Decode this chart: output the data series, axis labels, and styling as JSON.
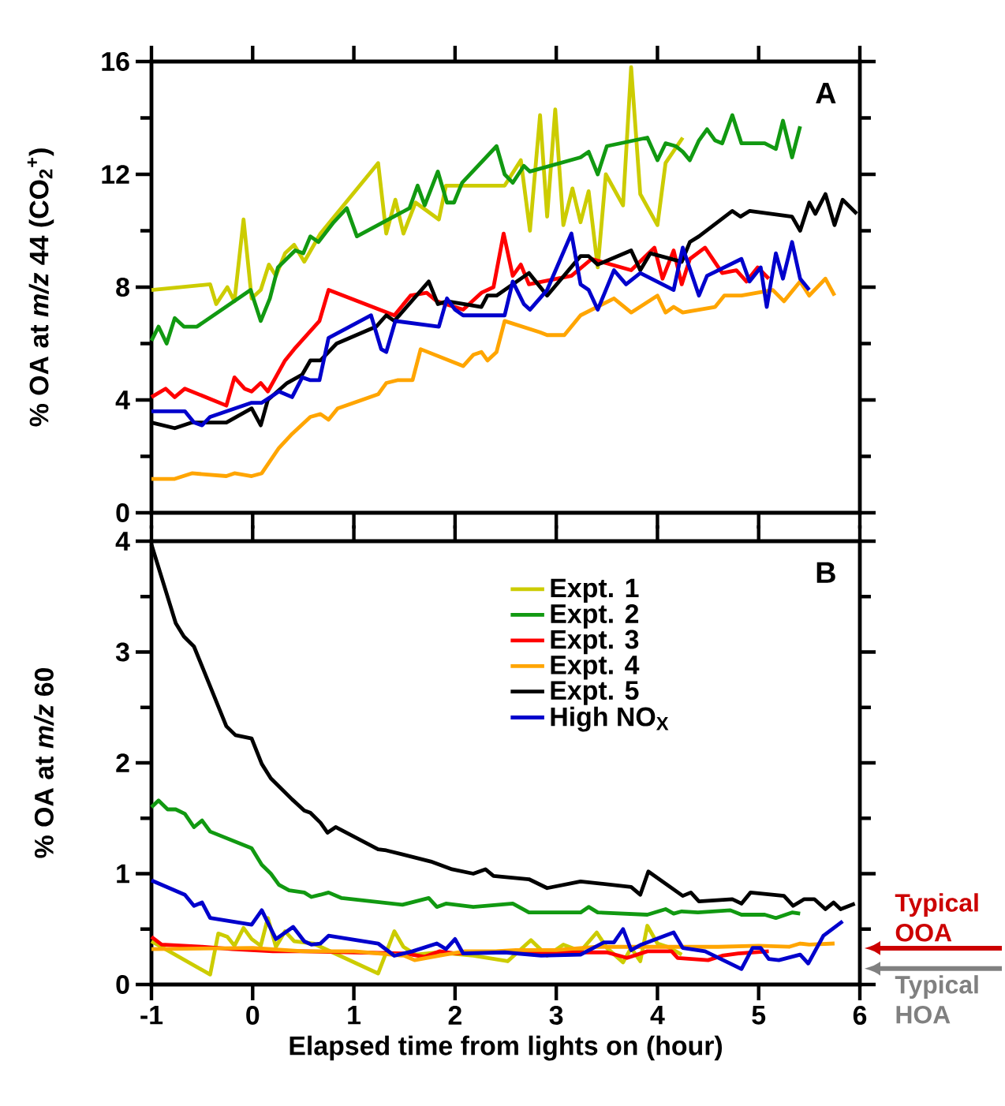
{
  "chart_data": [
    {
      "type": "line",
      "title": "A",
      "ylabel": "% OA at *m/z* 44 (CO$_{2}$$^{+}$)",
      "xlim": [
        -1,
        6
      ],
      "xticks": [
        -1,
        0,
        1,
        2,
        3,
        4,
        5,
        6
      ],
      "ylim": [
        0,
        16
      ],
      "yticks": [
        0,
        4,
        8,
        12,
        16
      ],
      "tick_labels": "y",
      "series": [
        {
          "color": "#cccc00",
          "x": [
            -1,
            -0.42,
            -0.36,
            -0.25,
            -0.18,
            -0.09,
            -0.01,
            0.08,
            0.16,
            0.23,
            0.32,
            0.41,
            0.51,
            0.67,
            1.24,
            1.32,
            1.41,
            1.49,
            1.61,
            1.84,
            1.91,
            2.49,
            2.65,
            2.74,
            2.84,
            2.91,
            2.99,
            3.07,
            3.16,
            3.24,
            3.32,
            3.41,
            3.49,
            3.66,
            3.74,
            3.83,
            4.0,
            4.08,
            4.25
          ],
          "values": [
            7.9,
            8.1,
            7.4,
            8.0,
            7.5,
            10.4,
            7.6,
            7.9,
            8.8,
            8.4,
            9.2,
            9.5,
            8.9,
            9.9,
            12.4,
            9.9,
            11.1,
            9.9,
            11.0,
            10.4,
            11.6,
            11.6,
            12.5,
            10.0,
            14.1,
            10.5,
            14.3,
            10.2,
            11.5,
            10.3,
            11.4,
            8.7,
            12.0,
            10.9,
            15.8,
            11.3,
            10.2,
            12.4,
            13.3
          ]
        },
        {
          "color": "#119911",
          "x": [
            -1,
            -0.93,
            -0.85,
            -0.77,
            -0.68,
            -0.55,
            -0.02,
            0.08,
            0.17,
            0.25,
            0.42,
            0.5,
            0.57,
            0.65,
            0.8,
            0.93,
            1.03,
            1.55,
            1.63,
            1.7,
            1.83,
            1.92,
            1.99,
            2.07,
            2.41,
            2.49,
            2.57,
            2.68,
            2.74,
            3.24,
            3.32,
            3.41,
            3.5,
            3.9,
            4.0,
            4.08,
            4.18,
            4.25,
            4.32,
            4.41,
            4.49,
            4.57,
            4.64,
            4.74,
            4.83,
            5.06,
            5.17,
            5.24,
            5.33,
            5.41
          ],
          "values": [
            6.1,
            6.6,
            6.0,
            6.9,
            6.6,
            6.6,
            7.9,
            6.8,
            7.6,
            8.7,
            9.3,
            9.2,
            9.8,
            9.6,
            10.3,
            10.8,
            9.8,
            10.8,
            11.6,
            10.9,
            12.1,
            11.0,
            11.0,
            11.7,
            13.0,
            12.0,
            11.7,
            12.3,
            12.1,
            12.6,
            12.8,
            12.0,
            13.0,
            13.3,
            12.5,
            13.1,
            13.0,
            12.8,
            12.5,
            13.2,
            13.6,
            13.2,
            13.1,
            14.1,
            13.1,
            13.1,
            12.9,
            13.9,
            12.6,
            13.7
          ]
        },
        {
          "color": "#ff0000",
          "x": [
            -1,
            -0.86,
            -0.77,
            -0.67,
            -0.26,
            -0.18,
            -0.08,
            -0.01,
            0.08,
            0.15,
            0.32,
            0.41,
            0.66,
            0.75,
            1.4,
            1.56,
            1.72,
            1.82,
            2.08,
            2.26,
            2.38,
            2.48,
            2.57,
            2.65,
            2.73,
            3.15,
            3.35,
            3.74,
            3.97,
            4.05,
            4.16,
            4.24,
            4.32,
            4.47,
            4.64,
            4.78,
            4.88,
            4.99,
            5.1
          ],
          "values": [
            4.1,
            4.4,
            4.1,
            4.4,
            3.8,
            4.8,
            4.4,
            4.3,
            4.6,
            4.3,
            5.4,
            5.8,
            6.8,
            7.9,
            7.0,
            7.7,
            7.8,
            7.5,
            7.2,
            7.8,
            8.0,
            9.9,
            8.4,
            8.8,
            8.1,
            8.4,
            9.0,
            8.6,
            9.4,
            8.3,
            9.3,
            8.1,
            9.0,
            9.4,
            8.5,
            8.6,
            8.2,
            8.7,
            8.3
          ]
        },
        {
          "color": "#ffa500",
          "x": [
            -1,
            -0.77,
            -0.6,
            -0.26,
            -0.18,
            -0.01,
            0.09,
            0.26,
            0.39,
            0.57,
            0.67,
            0.75,
            0.84,
            1.24,
            1.32,
            1.43,
            1.58,
            1.66,
            2.08,
            2.18,
            2.26,
            2.32,
            2.41,
            2.49,
            2.84,
            2.91,
            3.08,
            3.24,
            3.57,
            3.74,
            4.0,
            4.08,
            4.16,
            4.25,
            4.57,
            4.66,
            4.83,
            5.14,
            5.25,
            5.41,
            5.5,
            5.66,
            5.75
          ],
          "values": [
            1.2,
            1.2,
            1.4,
            1.3,
            1.4,
            1.3,
            1.4,
            2.3,
            2.8,
            3.4,
            3.5,
            3.3,
            3.7,
            4.2,
            4.6,
            4.7,
            4.7,
            5.8,
            5.2,
            5.6,
            5.7,
            5.4,
            5.7,
            6.8,
            6.4,
            6.3,
            6.3,
            7.0,
            7.6,
            7.1,
            7.7,
            7.1,
            7.3,
            7.1,
            7.3,
            7.7,
            7.7,
            7.9,
            7.5,
            8.2,
            7.7,
            8.3,
            7.7
          ]
        },
        {
          "color": "#000000",
          "x": [
            -1,
            -0.77,
            -0.6,
            -0.26,
            -0.01,
            0.08,
            0.15,
            0.34,
            0.49,
            0.57,
            0.67,
            0.83,
            1.22,
            1.32,
            1.4,
            1.74,
            1.83,
            1.92,
            2.26,
            2.32,
            2.41,
            2.73,
            2.91,
            3.24,
            3.32,
            3.41,
            3.74,
            3.83,
            3.93,
            4.24,
            4.32,
            4.41,
            4.74,
            4.82,
            4.91,
            5.33,
            5.41,
            5.5,
            5.56,
            5.66,
            5.75,
            5.83,
            5.97
          ],
          "values": [
            3.2,
            3.0,
            3.2,
            3.2,
            3.7,
            3.1,
            4.0,
            4.6,
            4.9,
            5.4,
            5.4,
            6.0,
            6.6,
            7.0,
            6.8,
            8.2,
            7.4,
            7.5,
            7.3,
            7.7,
            7.7,
            8.5,
            7.7,
            9.1,
            9.1,
            8.8,
            9.3,
            8.6,
            9.2,
            8.9,
            9.6,
            9.8,
            10.7,
            10.5,
            10.7,
            10.5,
            10.0,
            11.0,
            10.6,
            11.3,
            10.2,
            11.1,
            10.6
          ]
        },
        {
          "color": "#0000cc",
          "x": [
            -1,
            -0.67,
            -0.58,
            -0.5,
            -0.42,
            -0.01,
            0.09,
            0.26,
            0.39,
            0.49,
            0.57,
            0.66,
            0.75,
            1.17,
            1.27,
            1.32,
            1.41,
            1.84,
            1.92,
            2.0,
            2.08,
            2.49,
            2.57,
            2.68,
            2.74,
            2.91,
            3.15,
            3.24,
            3.32,
            3.41,
            3.57,
            3.69,
            3.83,
            4.16,
            4.25,
            4.41,
            4.49,
            4.83,
            4.91,
            5.02,
            5.08,
            5.17,
            5.24,
            5.33,
            5.41,
            5.5
          ],
          "values": [
            3.6,
            3.6,
            3.2,
            3.1,
            3.4,
            3.9,
            3.9,
            4.3,
            4.1,
            4.8,
            4.7,
            4.7,
            6.2,
            7.0,
            5.8,
            5.7,
            6.8,
            6.6,
            7.6,
            7.2,
            7.0,
            7.0,
            8.2,
            7.4,
            7.2,
            7.9,
            9.9,
            8.1,
            7.9,
            7.2,
            8.6,
            8.1,
            8.5,
            7.9,
            9.4,
            7.7,
            8.4,
            9.0,
            8.2,
            8.7,
            7.3,
            9.2,
            8.3,
            9.6,
            8.3,
            7.9
          ]
        }
      ]
    },
    {
      "type": "line",
      "title": "B",
      "xlabel": "Elapsed time from lights on (hour)",
      "ylabel": "% OA at *m/z* 60",
      "xlim": [
        -1,
        6
      ],
      "xticks": [
        -1,
        0,
        1,
        2,
        3,
        4,
        5,
        6
      ],
      "ylim": [
        0,
        4
      ],
      "yticks": [
        0,
        1,
        2,
        3,
        4
      ],
      "legend": "top",
      "annotations": [
        "Typical OOA",
        "Typical HOA"
      ],
      "series": [
        {
          "name": "Expt. 1",
          "color": "#cccc00",
          "x": [
            -1,
            -0.42,
            -0.34,
            -0.25,
            -0.18,
            -0.09,
            -0.01,
            0.08,
            0.15,
            0.23,
            0.32,
            0.41,
            0.6,
            1.24,
            1.4,
            1.49,
            1.61,
            1.84,
            2.18,
            2.52,
            2.75,
            2.91,
            3.07,
            3.24,
            3.4,
            3.5,
            3.66,
            3.74,
            3.83,
            3.9,
            4.0,
            4.1,
            4.24
          ],
          "values": [
            0.39,
            0.09,
            0.46,
            0.43,
            0.35,
            0.51,
            0.41,
            0.35,
            0.6,
            0.34,
            0.48,
            0.39,
            0.37,
            0.1,
            0.48,
            0.34,
            0.27,
            0.29,
            0.26,
            0.21,
            0.4,
            0.26,
            0.36,
            0.3,
            0.47,
            0.33,
            0.2,
            0.33,
            0.21,
            0.53,
            0.37,
            0.34,
            0.27
          ]
        },
        {
          "name": "Expt. 2",
          "color": "#119911",
          "x": [
            -1,
            -0.93,
            -0.84,
            -0.76,
            -0.67,
            -0.58,
            -0.5,
            -0.42,
            -0.01,
            0.09,
            0.18,
            0.26,
            0.36,
            0.51,
            0.58,
            0.67,
            0.75,
            0.88,
            1.48,
            1.74,
            1.82,
            1.91,
            2.18,
            2.57,
            2.73,
            3.24,
            3.32,
            3.41,
            3.9,
            4.08,
            4.16,
            4.24,
            4.4,
            4.72,
            4.83,
            5.06,
            5.17,
            5.33,
            5.41
          ],
          "values": [
            1.6,
            1.66,
            1.58,
            1.58,
            1.54,
            1.42,
            1.48,
            1.38,
            1.23,
            1.08,
            1.0,
            0.9,
            0.85,
            0.83,
            0.79,
            0.81,
            0.83,
            0.78,
            0.72,
            0.78,
            0.7,
            0.73,
            0.7,
            0.73,
            0.65,
            0.65,
            0.7,
            0.65,
            0.63,
            0.68,
            0.64,
            0.66,
            0.65,
            0.67,
            0.63,
            0.63,
            0.6,
            0.65,
            0.64
          ]
        },
        {
          "name": "Expt. 3",
          "color": "#ff0000",
          "x": [
            -1,
            -0.9,
            -0.5,
            -0.2,
            0.2,
            0.5,
            1.0,
            1.5,
            1.7,
            1.85,
            2.0,
            2.5,
            3.0,
            3.5,
            3.7,
            3.9,
            4.14,
            4.2,
            4.5,
            4.64,
            4.8,
            5.1
          ],
          "values": [
            0.43,
            0.36,
            0.34,
            0.32,
            0.3,
            0.3,
            0.29,
            0.28,
            0.25,
            0.3,
            0.28,
            0.3,
            0.29,
            0.29,
            0.24,
            0.3,
            0.3,
            0.24,
            0.22,
            0.26,
            0.28,
            0.3
          ]
        },
        {
          "name": "Expt. 4",
          "color": "#ffa500",
          "x": [
            -1,
            0.0,
            0.5,
            1.0,
            1.5,
            1.6,
            1.9,
            2.1,
            2.4,
            2.6,
            3.0,
            3.4,
            3.8,
            4.2,
            4.6,
            5.0,
            5.3,
            5.41,
            5.5,
            5.75
          ],
          "values": [
            0.32,
            0.33,
            0.3,
            0.3,
            0.26,
            0.22,
            0.27,
            0.3,
            0.3,
            0.31,
            0.31,
            0.34,
            0.34,
            0.34,
            0.34,
            0.35,
            0.34,
            0.37,
            0.36,
            0.37
          ]
        },
        {
          "name": "Expt. 5",
          "color": "#000000",
          "x": [
            -1,
            -0.76,
            -0.68,
            -0.58,
            -0.26,
            -0.17,
            -0.01,
            0.09,
            0.18,
            0.39,
            0.51,
            0.57,
            0.67,
            0.74,
            0.82,
            1.24,
            1.32,
            1.76,
            1.97,
            2.18,
            2.3,
            2.38,
            2.73,
            2.91,
            3.24,
            3.74,
            3.83,
            3.91,
            4.25,
            4.33,
            4.41,
            4.74,
            4.83,
            4.92,
            5.25,
            5.34,
            5.45,
            5.55,
            5.66,
            5.74,
            5.81,
            5.95
          ],
          "values": [
            3.97,
            3.26,
            3.14,
            3.05,
            2.33,
            2.25,
            2.22,
            1.99,
            1.86,
            1.67,
            1.57,
            1.55,
            1.46,
            1.37,
            1.42,
            1.22,
            1.21,
            1.11,
            1.04,
            1.0,
            1.04,
            0.98,
            0.95,
            0.87,
            0.93,
            0.88,
            0.81,
            1.02,
            0.8,
            0.83,
            0.75,
            0.77,
            0.73,
            0.83,
            0.8,
            0.71,
            0.77,
            0.77,
            0.68,
            0.74,
            0.68,
            0.73
          ]
        },
        {
          "name": "High NO$_{X}$",
          "color": "#0000cc",
          "x": [
            -1,
            -0.67,
            -0.58,
            -0.5,
            -0.42,
            -0.01,
            0.09,
            0.23,
            0.4,
            0.51,
            0.58,
            0.67,
            0.75,
            1.24,
            1.4,
            1.58,
            1.82,
            1.91,
            2.0,
            2.08,
            2.49,
            2.85,
            3.24,
            3.47,
            3.57,
            3.66,
            3.74,
            3.84,
            4.16,
            4.25,
            4.47,
            4.83,
            4.94,
            5.02,
            5.1,
            5.2,
            5.41,
            5.49,
            5.64,
            5.83
          ],
          "values": [
            0.94,
            0.81,
            0.71,
            0.74,
            0.6,
            0.54,
            0.67,
            0.41,
            0.52,
            0.39,
            0.36,
            0.37,
            0.44,
            0.37,
            0.26,
            0.3,
            0.37,
            0.32,
            0.41,
            0.28,
            0.29,
            0.26,
            0.27,
            0.38,
            0.38,
            0.5,
            0.31,
            0.36,
            0.47,
            0.33,
            0.3,
            0.14,
            0.33,
            0.33,
            0.23,
            0.22,
            0.27,
            0.19,
            0.44,
            0.57
          ]
        }
      ]
    }
  ]
}
